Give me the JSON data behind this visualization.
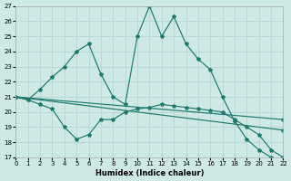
{
  "xlabel": "Humidex (Indice chaleur)",
  "bg_color": "#cde8e5",
  "line_color": "#1b7a6d",
  "grid_color": "#b8d8d5",
  "ylim": [
    17,
    27
  ],
  "xlim": [
    0,
    22
  ],
  "yticks": [
    17,
    18,
    19,
    20,
    21,
    22,
    23,
    24,
    25,
    26,
    27
  ],
  "xticks": [
    0,
    1,
    2,
    3,
    4,
    5,
    6,
    7,
    8,
    9,
    10,
    11,
    12,
    13,
    14,
    15,
    16,
    17,
    18,
    19,
    20,
    21,
    22
  ],
  "line1_x": [
    0,
    1,
    2,
    3,
    4,
    5,
    6,
    7,
    8,
    9,
    10,
    11,
    12,
    13,
    14,
    15,
    16,
    17,
    18,
    19,
    20,
    21,
    22
  ],
  "line1_y": [
    21.0,
    20.8,
    21.5,
    22.3,
    23.0,
    24.0,
    24.5,
    22.5,
    21.0,
    20.5,
    25.0,
    27.0,
    25.0,
    26.3,
    24.5,
    23.5,
    22.8,
    21.0,
    19.4,
    18.2,
    17.5,
    17.0,
    16.8
  ],
  "line2_x": [
    0,
    1,
    2,
    3,
    4,
    5,
    6,
    7,
    8,
    9,
    10,
    11,
    12,
    13,
    14,
    15,
    16,
    17,
    18,
    19,
    20,
    21,
    22
  ],
  "line2_y": [
    21.0,
    20.8,
    20.5,
    20.2,
    19.0,
    18.2,
    18.5,
    19.5,
    19.5,
    20.0,
    20.2,
    20.3,
    20.5,
    20.4,
    20.3,
    20.2,
    20.1,
    20.0,
    19.5,
    19.0,
    18.5,
    17.5,
    17.0
  ],
  "line3_x": [
    0,
    22
  ],
  "line3_y": [
    21.0,
    19.5
  ],
  "line4_x": [
    0,
    22
  ],
  "line4_y": [
    21.0,
    18.8
  ]
}
